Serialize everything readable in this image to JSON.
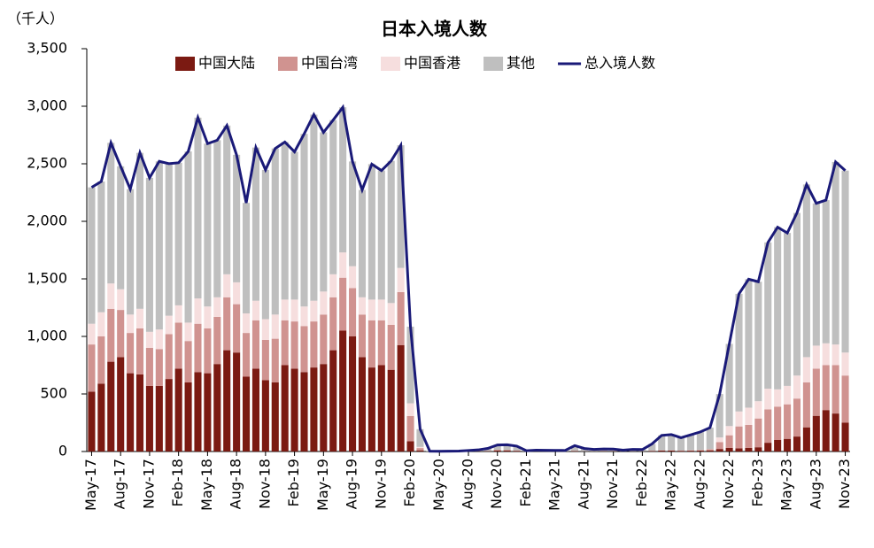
{
  "chart_data": {
    "type": "bar",
    "stacked": true,
    "title": "日本入境人数",
    "y_label": "（千人）",
    "categories": [
      "May-17",
      null,
      null,
      "Aug-17",
      null,
      null,
      "Nov-17",
      null,
      null,
      "Feb-18",
      null,
      null,
      "May-18",
      null,
      null,
      "Aug-18",
      null,
      null,
      "Nov-18",
      null,
      null,
      "Feb-19",
      null,
      null,
      "May-19",
      null,
      null,
      "Aug-19",
      null,
      null,
      "Nov-19",
      null,
      null,
      "Feb-20",
      null,
      null,
      "May-20",
      null,
      null,
      "Aug-20",
      null,
      null,
      "Nov-20",
      null,
      null,
      "Feb-21",
      null,
      null,
      "May-21",
      null,
      null,
      "Aug-21",
      null,
      null,
      "Nov-21",
      null,
      null,
      "Feb-22",
      null,
      null,
      "May-22",
      null,
      null,
      "Aug-22",
      null,
      null,
      "Nov-22",
      null,
      null,
      "Feb-23",
      null,
      null,
      "May-23",
      null,
      null,
      "Aug-23",
      null,
      null,
      "Nov-23"
    ],
    "series": [
      {
        "name": "中国大陆",
        "color": "#7b1a12",
        "values": [
          520,
          590,
          780,
          820,
          680,
          670,
          570,
          570,
          630,
          720,
          600,
          690,
          680,
          760,
          880,
          860,
          650,
          720,
          620,
          600,
          750,
          720,
          690,
          730,
          760,
          880,
          1050,
          1000,
          820,
          730,
          750,
          710,
          925,
          89,
          10,
          0,
          0,
          0,
          0,
          1,
          2,
          3,
          10,
          10,
          6,
          1,
          1,
          1,
          1,
          1,
          4,
          2,
          2,
          3,
          3,
          2,
          2,
          2,
          5,
          8,
          8,
          6,
          7,
          8,
          10,
          22,
          31,
          28,
          31,
          37,
          76,
          100,
          110,
          130,
          210,
          310,
          360,
          330,
          250
        ]
      },
      {
        "name": "中国台湾",
        "color": "#d09390",
        "values": [
          410,
          410,
          460,
          410,
          350,
          400,
          330,
          320,
          390,
          400,
          360,
          420,
          390,
          410,
          460,
          420,
          380,
          420,
          350,
          380,
          390,
          410,
          400,
          400,
          430,
          460,
          460,
          420,
          370,
          410,
          390,
          390,
          460,
          220,
          20,
          0,
          0,
          0,
          0,
          1,
          1,
          2,
          4,
          3,
          2,
          0,
          0,
          0,
          0,
          0,
          1,
          0,
          0,
          0,
          0,
          0,
          0,
          0,
          1,
          2,
          2,
          2,
          3,
          4,
          10,
          60,
          110,
          190,
          200,
          250,
          290,
          290,
          300,
          330,
          390,
          410,
          390,
          420,
          410
        ]
      },
      {
        "name": "中国香港",
        "color": "#f6dede",
        "values": [
          180,
          210,
          220,
          180,
          160,
          170,
          140,
          170,
          160,
          150,
          160,
          220,
          190,
          170,
          200,
          190,
          170,
          170,
          180,
          210,
          180,
          190,
          170,
          180,
          200,
          200,
          220,
          190,
          150,
          180,
          180,
          190,
          210,
          110,
          10,
          0,
          0,
          0,
          0,
          0,
          0,
          0,
          0,
          0,
          0,
          0,
          0,
          0,
          0,
          0,
          0,
          0,
          0,
          0,
          0,
          0,
          0,
          0,
          0,
          0,
          0,
          0,
          1,
          1,
          2,
          40,
          80,
          130,
          150,
          150,
          180,
          150,
          160,
          200,
          220,
          200,
          190,
          180,
          200
        ]
      },
      {
        "name": "其他",
        "color": "#bfbfbf",
        "values": [
          1185,
          1136,
          1222,
          1068,
          1090,
          1355,
          1338,
          1461,
          1321,
          1239,
          1487,
          1571,
          1415,
          1365,
          1292,
          1108,
          960,
          1331,
          1297,
          1443,
          1369,
          1284,
          1500,
          1617,
          1383,
          1340,
          1261,
          910,
          933,
          1177,
          1121,
          1235,
          1066,
          666,
          154,
          3,
          2,
          3,
          4,
          7,
          11,
          22,
          43,
          46,
          39,
          6,
          11,
          10,
          9,
          8,
          46,
          24,
          16,
          19,
          18,
          10,
          16,
          15,
          60,
          130,
          137,
          112,
          134,
          157,
          185,
          377,
          714,
          1022,
          1116,
          1038,
          1271,
          1409,
          1329,
          1413,
          1500,
          1236,
          1244,
          1586,
          1581
        ]
      },
      {
        "name": "总入境人数",
        "color": "#1a1a78",
        "type": "line",
        "values": [
          2295,
          2346,
          2682,
          2478,
          2280,
          2595,
          2378,
          2521,
          2501,
          2509,
          2607,
          2901,
          2675,
          2705,
          2832,
          2578,
          2160,
          2641,
          2447,
          2633,
          2689,
          2604,
          2760,
          2927,
          2773,
          2880,
          2991,
          2520,
          2273,
          2497,
          2441,
          2525,
          2661,
          1085,
          194,
          3,
          2,
          3,
          4,
          9,
          14,
          27,
          57,
          59,
          47,
          7,
          12,
          11,
          10,
          9,
          51,
          26,
          18,
          22,
          21,
          12,
          18,
          17,
          66,
          140,
          147,
          120,
          145,
          170,
          207,
          499,
          935,
          1370,
          1497,
          1475,
          1817,
          1949,
          1899,
          2073,
          2320,
          2156,
          2184,
          2516,
          2441
        ]
      }
    ],
    "ylim": [
      0,
      3500
    ],
    "yticks": [
      0,
      500,
      {
        "value": 1000,
        "label": "1,000"
      },
      {
        "value": 1500,
        "label": "1,500"
      },
      {
        "value": 2000,
        "label": "2,000"
      },
      {
        "value": 2500,
        "label": "2,500"
      },
      {
        "value": 3000,
        "label": "3,000"
      },
      {
        "value": 3500,
        "label": "3,500"
      }
    ],
    "grid": false,
    "legend": "top"
  }
}
